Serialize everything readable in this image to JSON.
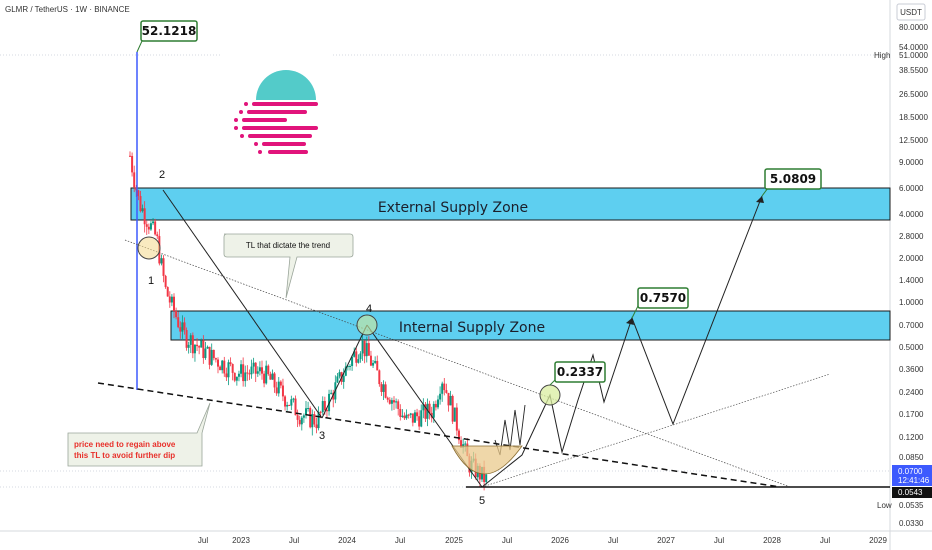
{
  "header": {
    "title": "GLMR / TetherUS · 1W · BINANCE",
    "currency": "USDT"
  },
  "axis": {
    "y_ticks": [
      "80.0000",
      "54.0000",
      "51.0000",
      "38.5500",
      "26.5000",
      "18.5000",
      "12.5000",
      "9.0000",
      "6.0000",
      "4.0000",
      "2.8000",
      "2.0000",
      "1.4000",
      "1.0000",
      "0.7000",
      "0.5000",
      "0.3600",
      "0.2400",
      "0.1700",
      "0.1200",
      "0.0850",
      "0.0535",
      "0.0330"
    ],
    "x_ticks": [
      "Jul",
      "2023",
      "Jul",
      "2024",
      "Jul",
      "2025",
      "Jul",
      "2026",
      "Jul",
      "2027",
      "Jul",
      "2028",
      "Jul",
      "2029"
    ],
    "high_label": "High",
    "high_value": "51.0000",
    "low_label": "Low",
    "low_value": "0.0535",
    "current_price": "0.0700",
    "countdown": "12:41:46",
    "last_low": "0.0543"
  },
  "annotations": {
    "ath": "52.1218",
    "target_1": "0.2337",
    "target_2": "0.7570",
    "target_3": "5.0809",
    "external_zone": "External Supply Zone",
    "internal_zone": "Internal Supply Zone",
    "trendline_note": "TL that dictate the trend",
    "warning_line1": "price need to regain above",
    "warning_line2": "this TL to avoid further dip",
    "waves": [
      "1",
      "2",
      "3",
      "4",
      "5"
    ]
  },
  "colors": {
    "zone": "#5ecff0",
    "zone_border": "#111111",
    "callout_border": "#2e7d32",
    "callout_fill": "#c8e6c9",
    "bull": "#089981",
    "bear": "#f23645",
    "price_line": "#3d5afe"
  },
  "logo": {
    "name": "moonbeam-logo"
  },
  "chart_data": {
    "type": "candlestick",
    "title": "GLMR / TetherUS · 1W · BINANCE",
    "y_scale": "log",
    "ylim": [
      0.033,
      80
    ],
    "xlim": [
      "2022-01",
      "2029-01"
    ],
    "series": [
      {
        "name": "GLMR/USDT",
        "values": [
          {
            "x": "2022-01",
            "y": 9.0
          },
          {
            "x": "2022-02",
            "y": 4.5
          },
          {
            "x": "2022-04",
            "y": 2.6
          },
          {
            "x": "2022-05",
            "y": 1.2
          },
          {
            "x": "2022-07",
            "y": 0.62
          },
          {
            "x": "2022-10",
            "y": 0.45
          },
          {
            "x": "2023-01",
            "y": 0.35
          },
          {
            "x": "2023-04",
            "y": 0.35
          },
          {
            "x": "2023-08",
            "y": 0.19
          },
          {
            "x": "2023-10",
            "y": 0.17
          },
          {
            "x": "2024-01",
            "y": 0.35
          },
          {
            "x": "2024-03",
            "y": 0.55
          },
          {
            "x": "2024-05",
            "y": 0.32
          },
          {
            "x": "2024-08",
            "y": 0.17
          },
          {
            "x": "2024-11",
            "y": 0.2
          },
          {
            "x": "2024-12",
            "y": 0.33
          },
          {
            "x": "2025-01",
            "y": 0.22
          },
          {
            "x": "2025-03",
            "y": 0.09
          },
          {
            "x": "2025-05",
            "y": 0.07
          }
        ]
      }
    ],
    "levels": {
      "high": 51.0,
      "low": 0.0535,
      "ath": 52.1218,
      "current": 0.07,
      "last_low": 0.0543
    },
    "targets": [
      0.2337,
      0.757,
      5.0809
    ],
    "zones": [
      {
        "name": "External Supply Zone",
        "from": 3.6,
        "to": 6.5
      },
      {
        "name": "Internal Supply Zone",
        "from": 0.55,
        "to": 0.85
      }
    ]
  }
}
